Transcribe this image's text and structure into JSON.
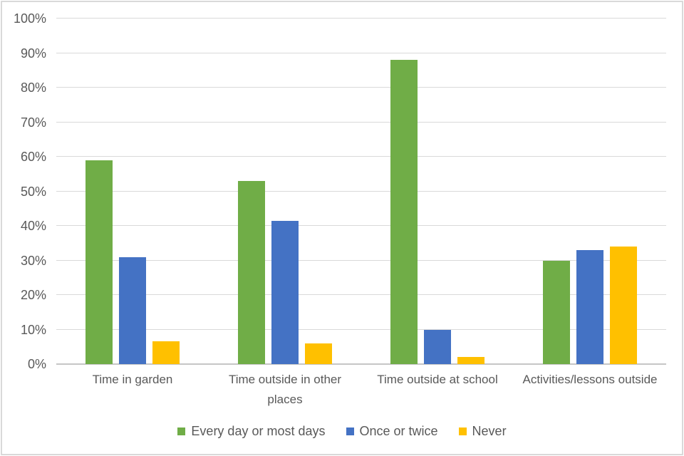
{
  "chart_data": {
    "type": "bar",
    "title": "",
    "categories": [
      "Time in garden",
      "Time outside in other\nplaces",
      "Time outside at school",
      "Activities/lessons outside"
    ],
    "series": [
      {
        "name": "Every day or most days",
        "color": "#70AD47",
        "values": [
          59,
          53,
          88,
          30
        ]
      },
      {
        "name": "Once or twice",
        "color": "#4472C4",
        "values": [
          31,
          41.5,
          10,
          33
        ]
      },
      {
        "name": "Never",
        "color": "#FFC000",
        "values": [
          6.5,
          6,
          2,
          34
        ]
      }
    ],
    "ylim": [
      0,
      100
    ],
    "yticks": [
      {
        "value": 0,
        "label": "0%"
      },
      {
        "value": 10,
        "label": "10%"
      },
      {
        "value": 20,
        "label": "20%"
      },
      {
        "value": 30,
        "label": "30%"
      },
      {
        "value": 40,
        "label": "40%"
      },
      {
        "value": 50,
        "label": "50%"
      },
      {
        "value": 60,
        "label": "60%"
      },
      {
        "value": 70,
        "label": "70%"
      },
      {
        "value": 80,
        "label": "80%"
      },
      {
        "value": 90,
        "label": "90%"
      },
      {
        "value": 100,
        "label": "100%"
      }
    ],
    "grid": true,
    "legend_position": "bottom",
    "xlabel": "",
    "ylabel": ""
  },
  "colors": {
    "background": "#FFFFFF",
    "frame_border": "#D9D9D9",
    "gridline": "#D9D9D9",
    "axis_line": "#C6C6C6",
    "text": "#595959"
  }
}
